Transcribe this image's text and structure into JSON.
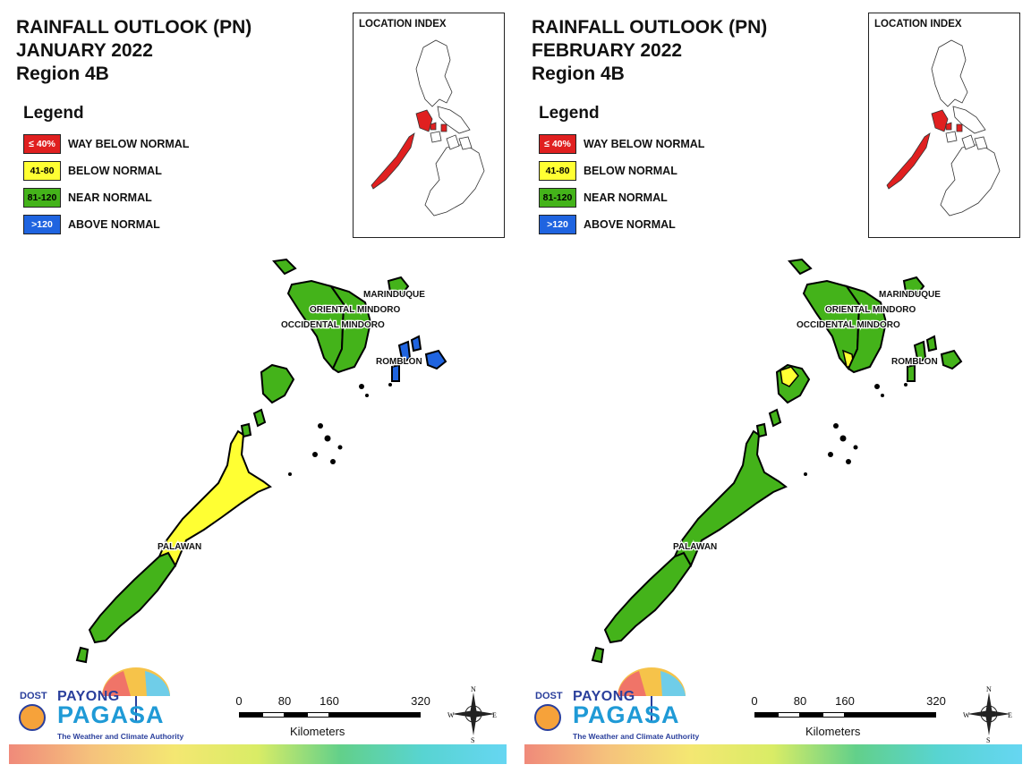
{
  "panels": [
    {
      "title_lines": [
        "RAINFALL OUTLOOK (PN)",
        "JANUARY 2022",
        "Region 4B"
      ],
      "legend_title": "Legend",
      "legend": [
        {
          "code": "≤ 40%",
          "label": "WAY BELOW NORMAL",
          "color": "#e02020",
          "text_color": "#ffffff"
        },
        {
          "code": "41-80",
          "label": "BELOW NORMAL",
          "color": "#ffff33",
          "text_color": "#000000"
        },
        {
          "code": "81-120",
          "label": "NEAR NORMAL",
          "color": "#44b31a",
          "text_color": "#000000"
        },
        {
          "code": ">120",
          "label": "ABOVE NORMAL",
          "color": "#1f64e0",
          "text_color": "#ffffff"
        }
      ],
      "inset_title": "LOCATION INDEX",
      "provinces": {
        "marinduque": "MARINDUQUE",
        "oriental_mindoro": "ORIENTAL MINDORO",
        "occidental_mindoro": "OCCIDENTAL MINDORO",
        "romblon": "ROMBLON",
        "palawan": "PALAWAN"
      },
      "province_categories": {
        "mindoro": "NEAR NORMAL",
        "marinduque": "NEAR NORMAL",
        "romblon": "ABOVE NORMAL",
        "palawan_south": "NEAR NORMAL",
        "palawan_central": "BELOW NORMAL",
        "palawan_north": "NEAR NORMAL"
      },
      "logo": {
        "dost": "DOST",
        "payong": "PAYONG",
        "pagasa": "PAGASA",
        "tagline": "The Weather and Climate Authority"
      },
      "scale": {
        "ticks": [
          "0",
          "80",
          "160",
          "320"
        ],
        "unit": "Kilometers"
      },
      "compass": {
        "n": "N",
        "e": "E",
        "s": "S",
        "w": "W"
      }
    },
    {
      "title_lines": [
        "RAINFALL OUTLOOK (PN)",
        "FEBRUARY 2022",
        "Region 4B"
      ],
      "legend_title": "Legend",
      "legend": [
        {
          "code": "≤ 40%",
          "label": "WAY BELOW NORMAL",
          "color": "#e02020",
          "text_color": "#ffffff"
        },
        {
          "code": "41-80",
          "label": "BELOW NORMAL",
          "color": "#ffff33",
          "text_color": "#000000"
        },
        {
          "code": "81-120",
          "label": "NEAR NORMAL",
          "color": "#44b31a",
          "text_color": "#000000"
        },
        {
          "code": ">120",
          "label": "ABOVE NORMAL",
          "color": "#1f64e0",
          "text_color": "#ffffff"
        }
      ],
      "inset_title": "LOCATION INDEX",
      "provinces": {
        "marinduque": "MARINDUQUE",
        "oriental_mindoro": "ORIENTAL MINDORO",
        "occidental_mindoro": "OCCIDENTAL MINDORO",
        "romblon": "ROMBLON",
        "palawan": "PALAWAN"
      },
      "province_categories": {
        "mindoro": "NEAR NORMAL",
        "marinduque": "NEAR NORMAL",
        "romblon": "NEAR NORMAL",
        "palawan_south": "NEAR NORMAL",
        "palawan_central": "NEAR NORMAL",
        "palawan_north": "NEAR NORMAL"
      },
      "logo": {
        "dost": "DOST",
        "payong": "PAYONG",
        "pagasa": "PAGASA",
        "tagline": "The Weather and Climate Authority"
      },
      "scale": {
        "ticks": [
          "0",
          "80",
          "160",
          "320"
        ],
        "unit": "Kilometers"
      },
      "compass": {
        "n": "N",
        "e": "E",
        "s": "S",
        "w": "W"
      }
    }
  ]
}
